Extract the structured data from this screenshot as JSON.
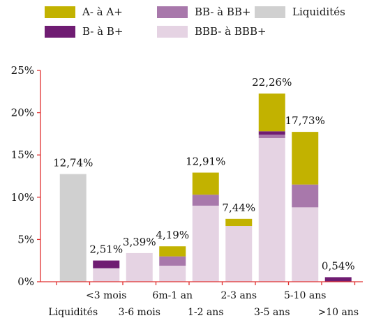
{
  "chart_data": {
    "type": "bar",
    "stacked": true,
    "categories": [
      "Liquidités",
      "<3 mois",
      "3-6 mois",
      "6m-1 an",
      "1-2 ans",
      "2-3 ans",
      "3-5 ans",
      "5-10 ans",
      ">10 ans"
    ],
    "totals_labels": [
      "12,74%",
      "2,51%",
      "3,39%",
      "4,19%",
      "12,91%",
      "7,44%",
      "22,26%",
      "17,73%",
      "0,54%"
    ],
    "series": [
      {
        "name": "Liquidités",
        "color": "#d0d0d0",
        "values": [
          12.74,
          0,
          0,
          0,
          0,
          0,
          0,
          0,
          0
        ]
      },
      {
        "name": "BBB- à BBB+",
        "color": "#e5d3e3",
        "values": [
          0,
          1.6,
          3.39,
          1.9,
          9.0,
          6.6,
          17.0,
          8.8,
          0
        ]
      },
      {
        "name": "BB- à BB+",
        "color": "#a878ab",
        "values": [
          0,
          0,
          0,
          1.1,
          1.3,
          0,
          0.4,
          2.7,
          0
        ]
      },
      {
        "name": "B- à B+",
        "color": "#6f1c72",
        "values": [
          0,
          0.91,
          0,
          0,
          0,
          0,
          0.4,
          0,
          0.54
        ]
      },
      {
        "name": "A- à A+",
        "color": "#c2b200",
        "values": [
          0,
          0,
          0,
          1.19,
          2.61,
          0.84,
          4.46,
          6.23,
          0
        ]
      }
    ],
    "legend": [
      {
        "label": "A- à A+",
        "color": "#c2b200"
      },
      {
        "label": "BB- à BB+",
        "color": "#a878ab"
      },
      {
        "label": "Liquidités",
        "color": "#d0d0d0"
      },
      {
        "label": "B- à B+",
        "color": "#6f1c72"
      },
      {
        "label": "BBB- à BBB+",
        "color": "#e5d3e3"
      }
    ],
    "y_ticks": [
      "0%",
      "5%",
      "10%",
      "15%",
      "20%",
      "25%"
    ],
    "ylim": [
      0,
      25
    ],
    "legend_position": "top",
    "grid": false,
    "axis_color": "#e03030"
  }
}
